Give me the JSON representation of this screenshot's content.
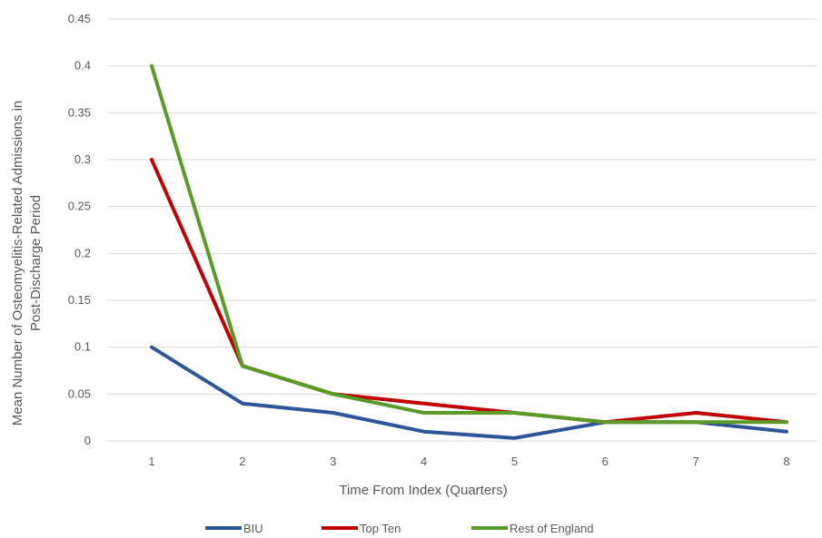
{
  "chart_data": {
    "type": "line",
    "title": "",
    "xlabel": "Time From Index (Quarters)",
    "ylabel_line1": "Mean Number of Osteomyelitis-Related Admissions in",
    "ylabel_line2": "Post-Discharge Period",
    "x": [
      1,
      2,
      3,
      4,
      5,
      6,
      7,
      8
    ],
    "x_tick_labels": [
      "1",
      "2",
      "3",
      "4",
      "5",
      "6",
      "7",
      "8"
    ],
    "ylim": [
      0,
      0.45
    ],
    "y_ticks": [
      0,
      0.05,
      0.1,
      0.15,
      0.2,
      0.25,
      0.3,
      0.35,
      0.4,
      0.45
    ],
    "y_tick_labels": [
      "0",
      "0.05",
      "0.1",
      "0.15",
      "0.2",
      "0.25",
      "0.3",
      "0.35",
      "0.4",
      "0.45"
    ],
    "grid": "horizontal",
    "legend_position": "bottom",
    "series": [
      {
        "name": "BIU",
        "color": "#2E5597",
        "values": [
          0.1,
          0.04,
          0.03,
          0.01,
          0.003,
          0.02,
          0.02,
          0.01
        ]
      },
      {
        "name": "Top Ten",
        "color": "#C00000",
        "values": [
          0.3,
          0.08,
          0.05,
          0.04,
          0.03,
          0.02,
          0.03,
          0.02
        ]
      },
      {
        "name": "Rest of England",
        "color": "#5A9A27",
        "values": [
          0.4,
          0.08,
          0.05,
          0.03,
          0.03,
          0.02,
          0.02,
          0.02
        ]
      }
    ]
  }
}
